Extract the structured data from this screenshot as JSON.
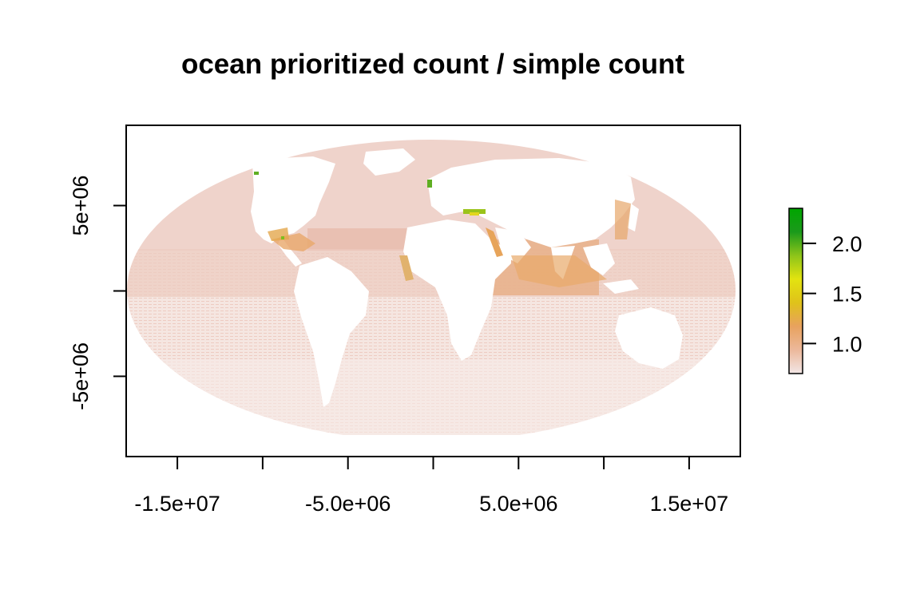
{
  "title": "ocean prioritized count / simple count",
  "chart_data": {
    "type": "heatmap",
    "title": "ocean prioritized count / simple count",
    "xlim": [
      -18000000,
      18000000
    ],
    "ylim": [
      -9700000,
      9700000
    ],
    "x_ticks": [
      -15000000,
      -10000000,
      -5000000,
      0,
      5000000,
      10000000,
      15000000
    ],
    "x_tick_labels": [
      "-1.5e+07",
      "",
      "-5.0e+06",
      "",
      "5.0e+06",
      "",
      "1.5e+07"
    ],
    "y_ticks": [
      5000000,
      0,
      -5000000
    ],
    "y_tick_labels": [
      "5e+06",
      "",
      "-5e+06"
    ],
    "projection": "Mollweide (world)",
    "legend": {
      "position": "right",
      "range": [
        0.7,
        2.35
      ],
      "ticks": [
        1.0,
        1.5,
        2.0
      ],
      "tick_labels": [
        "1.0",
        "1.5",
        "2.0"
      ],
      "colors": [
        "#f2e6e6",
        "#ecb89b",
        "#e8a25e",
        "#dfc21a",
        "#e3e310",
        "#8dc41a",
        "#1b9a1b",
        "#00a600"
      ]
    },
    "background_value_color": "#f1d7d0",
    "hotspot_color": "#e7a86c"
  }
}
